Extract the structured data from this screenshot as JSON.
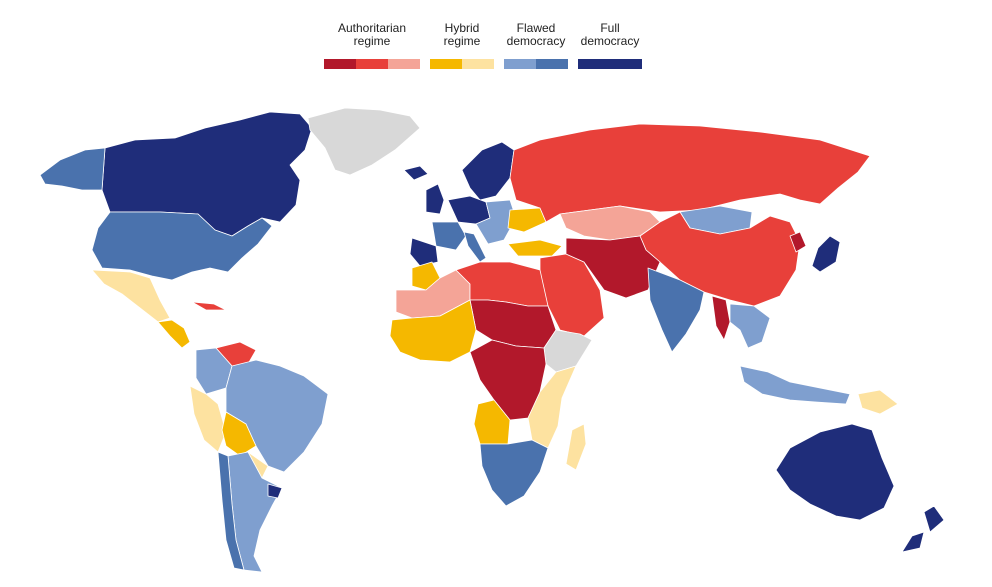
{
  "legend": {
    "categories": [
      {
        "label": "Authoritarian\nregime",
        "swatches": [
          "#b2182b",
          "#e8403a",
          "#f4a497"
        ]
      },
      {
        "label": "Hybrid\nregime",
        "swatches": [
          "#f5b800",
          "#fde2a0"
        ]
      },
      {
        "label": "Flawed\ndemocracy",
        "swatches": [
          "#7f9fcf",
          "#4a72ad"
        ]
      },
      {
        "label": "Full\ndemocracy",
        "swatches": [
          "#1f2d7a"
        ]
      }
    ]
  },
  "map": {
    "no_data_color": "#d8d8d8",
    "regions": [
      {
        "id": "canada",
        "color": "#1f2d7a"
      },
      {
        "id": "alaska",
        "color": "#4a72ad"
      },
      {
        "id": "usa",
        "color": "#4a72ad"
      },
      {
        "id": "greenland",
        "color": "#d8d8d8"
      },
      {
        "id": "mexico",
        "color": "#fde2a0"
      },
      {
        "id": "central-america",
        "color": "#f5b800"
      },
      {
        "id": "cuba",
        "color": "#e8403a"
      },
      {
        "id": "venezuela",
        "color": "#e8403a"
      },
      {
        "id": "colombia",
        "color": "#7f9fcf"
      },
      {
        "id": "peru",
        "color": "#fde2a0"
      },
      {
        "id": "brazil",
        "color": "#7f9fcf"
      },
      {
        "id": "bolivia",
        "color": "#f5b800"
      },
      {
        "id": "paraguay",
        "color": "#fde2a0"
      },
      {
        "id": "argentina",
        "color": "#7f9fcf"
      },
      {
        "id": "chile",
        "color": "#4a72ad"
      },
      {
        "id": "uruguay",
        "color": "#1f2d7a"
      },
      {
        "id": "iceland",
        "color": "#1f2d7a"
      },
      {
        "id": "scandinavia",
        "color": "#1f2d7a"
      },
      {
        "id": "uk",
        "color": "#1f2d7a"
      },
      {
        "id": "western-europe",
        "color": "#1f2d7a"
      },
      {
        "id": "france",
        "color": "#4a72ad"
      },
      {
        "id": "iberia",
        "color": "#1f2d7a"
      },
      {
        "id": "italy",
        "color": "#4a72ad"
      },
      {
        "id": "eastern-europe",
        "color": "#7f9fcf"
      },
      {
        "id": "ukraine",
        "color": "#f5b800"
      },
      {
        "id": "turkey",
        "color": "#f5b800"
      },
      {
        "id": "russia",
        "color": "#e8403a"
      },
      {
        "id": "kazakhstan",
        "color": "#f4a497"
      },
      {
        "id": "mongolia",
        "color": "#7f9fcf"
      },
      {
        "id": "china",
        "color": "#e8403a"
      },
      {
        "id": "middle-east",
        "color": "#e8403a"
      },
      {
        "id": "iran-central-asia",
        "color": "#b2182b"
      },
      {
        "id": "india",
        "color": "#4a72ad"
      },
      {
        "id": "myanmar",
        "color": "#b2182b"
      },
      {
        "id": "southeast-asia",
        "color": "#7f9fcf"
      },
      {
        "id": "japan",
        "color": "#1f2d7a"
      },
      {
        "id": "north-korea",
        "color": "#b2182b"
      },
      {
        "id": "north-africa",
        "color": "#e8403a"
      },
      {
        "id": "morocco",
        "color": "#f5b800"
      },
      {
        "id": "west-sahara",
        "color": "#f4a497"
      },
      {
        "id": "sahel",
        "color": "#b2182b"
      },
      {
        "id": "west-africa",
        "color": "#f5b800"
      },
      {
        "id": "central-africa",
        "color": "#b2182b"
      },
      {
        "id": "horn-africa",
        "color": "#d8d8d8"
      },
      {
        "id": "east-africa",
        "color": "#fde2a0"
      },
      {
        "id": "angola",
        "color": "#f5b800"
      },
      {
        "id": "southern-africa",
        "color": "#4a72ad"
      },
      {
        "id": "madagascar",
        "color": "#fde2a0"
      },
      {
        "id": "indonesia",
        "color": "#7f9fcf"
      },
      {
        "id": "png",
        "color": "#fde2a0"
      },
      {
        "id": "australia",
        "color": "#1f2d7a"
      },
      {
        "id": "new-zealand",
        "color": "#1f2d7a"
      }
    ]
  }
}
